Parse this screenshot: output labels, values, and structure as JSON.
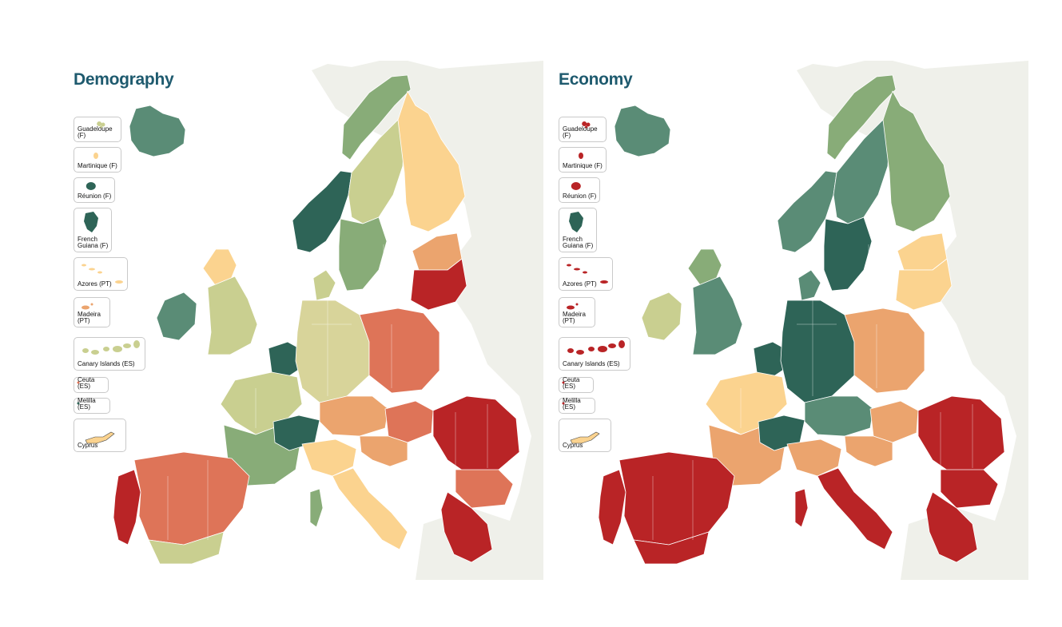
{
  "colors": {
    "sea": "#ffffff",
    "non_eu_land": "#eff0ea",
    "dark_green": "#2e6457",
    "mid_green": "#5a8c76",
    "light_green": "#88ac78",
    "olive": "#c9cf90",
    "yellow_olive": "#d8d49a",
    "peach": "#fbd38f",
    "orange": "#eba46e",
    "coral": "#de7458",
    "red": "#b92426",
    "title": "#1e5a6e"
  },
  "maps": [
    {
      "title": "Demography",
      "insets": [
        {
          "label": "Guadeloupe (F)",
          "color": "#c9cf90"
        },
        {
          "label": "Martinique (F)",
          "color": "#fbd38f"
        },
        {
          "label": "Réunion (F)",
          "color": "#2e6457"
        },
        {
          "label": "French\nGuiana (F)",
          "color": "#2e6457"
        },
        {
          "label": "Azores (PT)",
          "color": "#fbd38f"
        },
        {
          "label": "Madeira (PT)",
          "color": "#eba46e"
        },
        {
          "label": "Canary Islands (ES)",
          "color": "#c9cf90"
        },
        {
          "label": "Ceuta (ES)",
          "color": "#de7458"
        },
        {
          "label": "Melilla (ES)",
          "color": "#2e6457"
        },
        {
          "label": "Cyprus",
          "color": "#fbd38f"
        }
      ],
      "regions": {
        "iceland": "#5a8c76",
        "norway_north": "#88ac78",
        "norway_south": "#2e6457",
        "sweden_north": "#c9cf90",
        "sweden_south": "#88ac78",
        "finland": "#fbd38f",
        "baltics": "#eba46e",
        "belarus_like": "#b92426",
        "ireland": "#5a8c76",
        "uk_north": "#fbd38f",
        "uk_south": "#c9cf90",
        "benelux": "#2e6457",
        "denmark": "#c9cf90",
        "germany": "#d8d49a",
        "poland": "#de7458",
        "france_north": "#c9cf90",
        "france_south": "#88ac78",
        "alps": "#2e6457",
        "austria_czech": "#eba46e",
        "hungary": "#de7458",
        "romania": "#b92426",
        "bulgaria": "#de7458",
        "italy_north": "#fbd38f",
        "italy_south": "#fbd38f",
        "portugal": "#b92426",
        "spain": "#de7458",
        "spain_south": "#c9cf90",
        "croatia": "#eba46e",
        "greece": "#b92426",
        "sardinia": "#88ac78"
      }
    },
    {
      "title": "Economy",
      "insets": [
        {
          "label": "Guadeloupe (F)",
          "color": "#b92426"
        },
        {
          "label": "Martinique (F)",
          "color": "#b92426"
        },
        {
          "label": "Réunion (F)",
          "color": "#b92426"
        },
        {
          "label": "French\nGuiana (F)",
          "color": "#2e6457"
        },
        {
          "label": "Azores (PT)",
          "color": "#b92426"
        },
        {
          "label": "Madeira (PT)",
          "color": "#b92426"
        },
        {
          "label": "Canary Islands (ES)",
          "color": "#b92426"
        },
        {
          "label": "Ceuta (ES)",
          "color": "#b92426"
        },
        {
          "label": "Melilla (ES)",
          "color": "#b92426"
        },
        {
          "label": "Cyprus",
          "color": "#fbd38f"
        }
      ],
      "regions": {
        "iceland": "#5a8c76",
        "norway_north": "#88ac78",
        "norway_south": "#5a8c76",
        "sweden_north": "#5a8c76",
        "sweden_south": "#2e6457",
        "finland": "#88ac78",
        "baltics": "#fbd38f",
        "belarus_like": "#fbd38f",
        "ireland": "#c9cf90",
        "uk_north": "#88ac78",
        "uk_south": "#5a8c76",
        "benelux": "#2e6457",
        "denmark": "#5a8c76",
        "germany": "#2e6457",
        "poland": "#eba46e",
        "france_north": "#fbd38f",
        "france_south": "#eba46e",
        "alps": "#2e6457",
        "austria_czech": "#5a8c76",
        "hungary": "#eba46e",
        "romania": "#b92426",
        "bulgaria": "#b92426",
        "italy_north": "#eba46e",
        "italy_south": "#b92426",
        "portugal": "#b92426",
        "spain": "#b92426",
        "spain_south": "#b92426",
        "croatia": "#eba46e",
        "greece": "#b92426",
        "sardinia": "#b92426"
      }
    }
  ]
}
